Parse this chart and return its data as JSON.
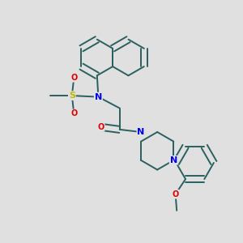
{
  "background_color": "#e0e0e0",
  "bond_color": "#2a6060",
  "atom_colors": {
    "N": "#0000ee",
    "O": "#dd0000",
    "S": "#bbbb00",
    "C": "#2a6060"
  },
  "bond_width": 1.4,
  "dbo": 0.013,
  "figsize": [
    3.0,
    3.0
  ],
  "dpi": 100
}
